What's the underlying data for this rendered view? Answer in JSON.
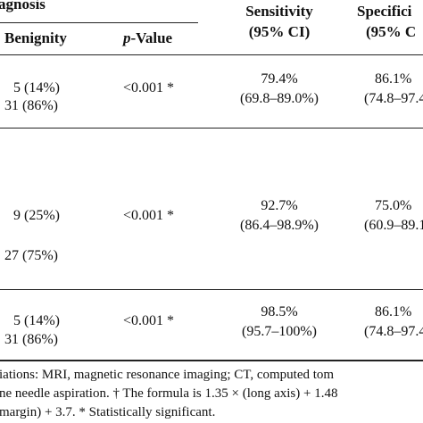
{
  "header": {
    "diagnosis_fragment": "agnosis",
    "benignity": "Benignity",
    "p_value_letter": "p",
    "p_value_rest": "-Value",
    "sensitivity": "Sensitivity",
    "sensitivity_ci": "(95% CI)",
    "specificity_fragment": "Specifici",
    "specificity_ci_fragment": "(95% C"
  },
  "rows": [
    {
      "benignity_a": "5 (14%)",
      "benignity_b": "31 (86%)",
      "p_value": "<0.001 *",
      "sensitivity": "79.4%",
      "sensitivity_ci": "(69.8–89.0%)",
      "specificity": "86.1%",
      "specificity_ci": "(74.8–97.4"
    },
    {
      "benignity_a": "9 (25%)",
      "benignity_b": "27 (75%)",
      "p_value": "<0.001 *",
      "sensitivity": "92.7%",
      "sensitivity_ci": "(86.4–98.9%)",
      "specificity": "75.0%",
      "specificity_ci": "(60.9–89.1"
    },
    {
      "benignity_a": "5 (14%)",
      "benignity_b": "31 (86%)",
      "p_value": "<0.001 *",
      "sensitivity": "98.5%",
      "sensitivity_ci": "(95.7–100%)",
      "specificity": "86.1%",
      "specificity_ci": "(74.8–97.4"
    }
  ],
  "footnotes": {
    "line1": "iations: MRI, magnetic resonance imaging; CT, computed tom",
    "line2": "ne needle aspiration. † The formula is 1.35 × (long axis) + 1.48",
    "line3": "margin) + 3.7. * Statistically significant."
  }
}
